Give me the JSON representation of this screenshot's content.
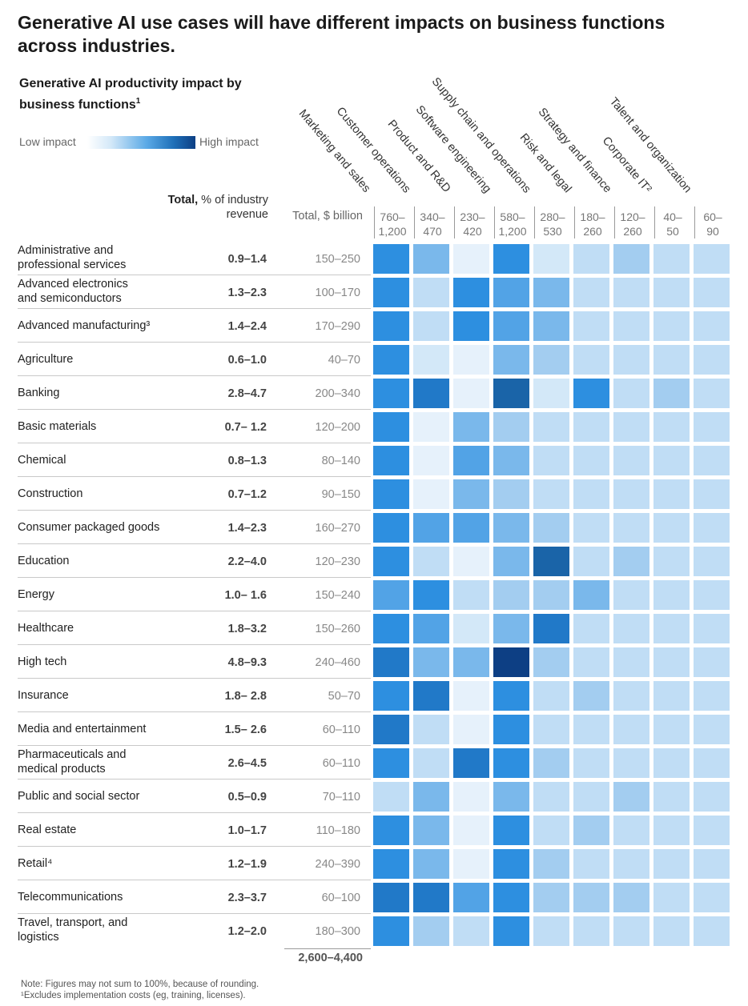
{
  "title": "Generative AI use cases will have different impacts on business functions across industries.",
  "subtitle": "Generative AI productivity impact by business functions",
  "subtitle_footnote": "1",
  "legend": {
    "low": "Low impact",
    "high": "High impact"
  },
  "header": {
    "pct_bold": "Total,",
    "pct_rest": " % of industry revenue",
    "billion": "Total, $ billion"
  },
  "grand_total": "2,600–4,400",
  "notes": [
    "Note: Figures may not sum to 100%, because of rounding.",
    "¹Excludes implementation costs (eg, training, licenses)."
  ],
  "chart_data": {
    "type": "heatmap",
    "scale": {
      "min_label": "Low impact",
      "max_label": "High impact",
      "min": 0,
      "max": 10,
      "colors": {
        "0": "#ffffff",
        "1": "#e6f1fb",
        "2": "#d3e8f8",
        "3": "#c0ddf5",
        "4": "#a3cdf0",
        "5": "#7ab8eb",
        "6": "#52a3e6",
        "7": "#2d8fe0",
        "8": "#2179c8",
        "9": "#1a64a8",
        "10": "#0d3f84"
      }
    },
    "functions": [
      {
        "name": "Marketing and sales",
        "range": "760–\n1,200"
      },
      {
        "name": "Customer operations",
        "range": "340–\n470"
      },
      {
        "name": "Product and R&D",
        "range": "230–\n420"
      },
      {
        "name": "Software engineering",
        "range": "580–\n1,200"
      },
      {
        "name": "Supply chain and operations",
        "range": "280–\n530"
      },
      {
        "name": "Risk and legal",
        "range": "180–\n260"
      },
      {
        "name": "Strategy and finance",
        "range": "120–\n260"
      },
      {
        "name": "Corporate IT²",
        "range": "40–\n50"
      },
      {
        "name": "Talent and organization",
        "range": "60–\n90"
      }
    ],
    "industries": [
      {
        "name": "Administrative and professional services",
        "pct": "0.9–1.4",
        "billion": "150–250",
        "impact": [
          7,
          5,
          1,
          7,
          2,
          3,
          4,
          3,
          3
        ]
      },
      {
        "name": "Advanced electronics and semiconductors",
        "pct": "1.3–2.3",
        "billion": "100–170",
        "impact": [
          7,
          3,
          7,
          6,
          5,
          3,
          3,
          3,
          3
        ]
      },
      {
        "name": "Advanced manufacturing³",
        "pct": "1.4–2.4",
        "billion": "170–290",
        "impact": [
          7,
          3,
          7,
          6,
          5,
          3,
          3,
          3,
          3
        ]
      },
      {
        "name": "Agriculture",
        "pct": "0.6–1.0",
        "billion": "40–70",
        "impact": [
          7,
          2,
          1,
          5,
          4,
          3,
          3,
          3,
          3
        ]
      },
      {
        "name": "Banking",
        "pct": "2.8–4.7",
        "billion": "200–340",
        "impact": [
          7,
          8,
          1,
          9,
          2,
          7,
          3,
          4,
          3
        ]
      },
      {
        "name": "Basic materials",
        "pct": "0.7– 1.2",
        "billion": "120–200",
        "impact": [
          7,
          1,
          5,
          4,
          3,
          3,
          3,
          3,
          3
        ]
      },
      {
        "name": "Chemical",
        "pct": "0.8–1.3",
        "billion": "80–140",
        "impact": [
          7,
          1,
          6,
          5,
          3,
          3,
          3,
          3,
          3
        ]
      },
      {
        "name": "Construction",
        "pct": "0.7–1.2",
        "billion": "90–150",
        "impact": [
          7,
          1,
          5,
          4,
          3,
          3,
          3,
          3,
          3
        ]
      },
      {
        "name": "Consumer packaged goods",
        "pct": "1.4–2.3",
        "billion": "160–270",
        "impact": [
          7,
          6,
          6,
          5,
          4,
          3,
          3,
          3,
          3
        ]
      },
      {
        "name": "Education",
        "pct": "2.2–4.0",
        "billion": "120–230",
        "impact": [
          7,
          3,
          1,
          5,
          9,
          3,
          4,
          3,
          3
        ]
      },
      {
        "name": "Energy",
        "pct": "1.0– 1.6",
        "billion": "150–240",
        "impact": [
          6,
          7,
          3,
          4,
          4,
          5,
          3,
          3,
          3
        ]
      },
      {
        "name": "Healthcare",
        "pct": "1.8–3.2",
        "billion": "150–260",
        "impact": [
          7,
          6,
          2,
          5,
          8,
          3,
          3,
          3,
          3
        ]
      },
      {
        "name": "High tech",
        "pct": "4.8–9.3",
        "billion": "240–460",
        "impact": [
          8,
          5,
          5,
          10,
          4,
          3,
          3,
          3,
          3
        ]
      },
      {
        "name": "Insurance",
        "pct": "1.8– 2.8",
        "billion": "50–70",
        "impact": [
          7,
          8,
          1,
          7,
          3,
          4,
          3,
          3,
          3
        ]
      },
      {
        "name": "Media and entertainment",
        "pct": "1.5– 2.6",
        "billion": "60–110",
        "impact": [
          8,
          3,
          1,
          7,
          3,
          3,
          3,
          3,
          3
        ]
      },
      {
        "name": "Pharmaceuticals and medical products",
        "pct": "2.6–4.5",
        "billion": "60–110",
        "impact": [
          7,
          3,
          8,
          7,
          4,
          3,
          3,
          3,
          3
        ]
      },
      {
        "name": "Public and social sector",
        "pct": "0.5–0.9",
        "billion": "70–110",
        "impact": [
          3,
          5,
          1,
          5,
          3,
          3,
          4,
          3,
          3
        ]
      },
      {
        "name": "Real estate",
        "pct": "1.0–1.7",
        "billion": "110–180",
        "impact": [
          7,
          5,
          1,
          7,
          3,
          4,
          3,
          3,
          3
        ]
      },
      {
        "name": "Retail⁴",
        "pct": "1.2–1.9",
        "billion": "240–390",
        "impact": [
          7,
          5,
          1,
          7,
          4,
          3,
          3,
          3,
          3
        ]
      },
      {
        "name": "Telecommunications",
        "pct": "2.3–3.7",
        "billion": "60–100",
        "impact": [
          8,
          8,
          6,
          7,
          4,
          4,
          4,
          3,
          3
        ]
      },
      {
        "name": "Travel, transport, and logistics",
        "pct": "1.2–2.0",
        "billion": "180–300",
        "impact": [
          7,
          4,
          3,
          7,
          3,
          3,
          3,
          3,
          3
        ]
      }
    ]
  }
}
